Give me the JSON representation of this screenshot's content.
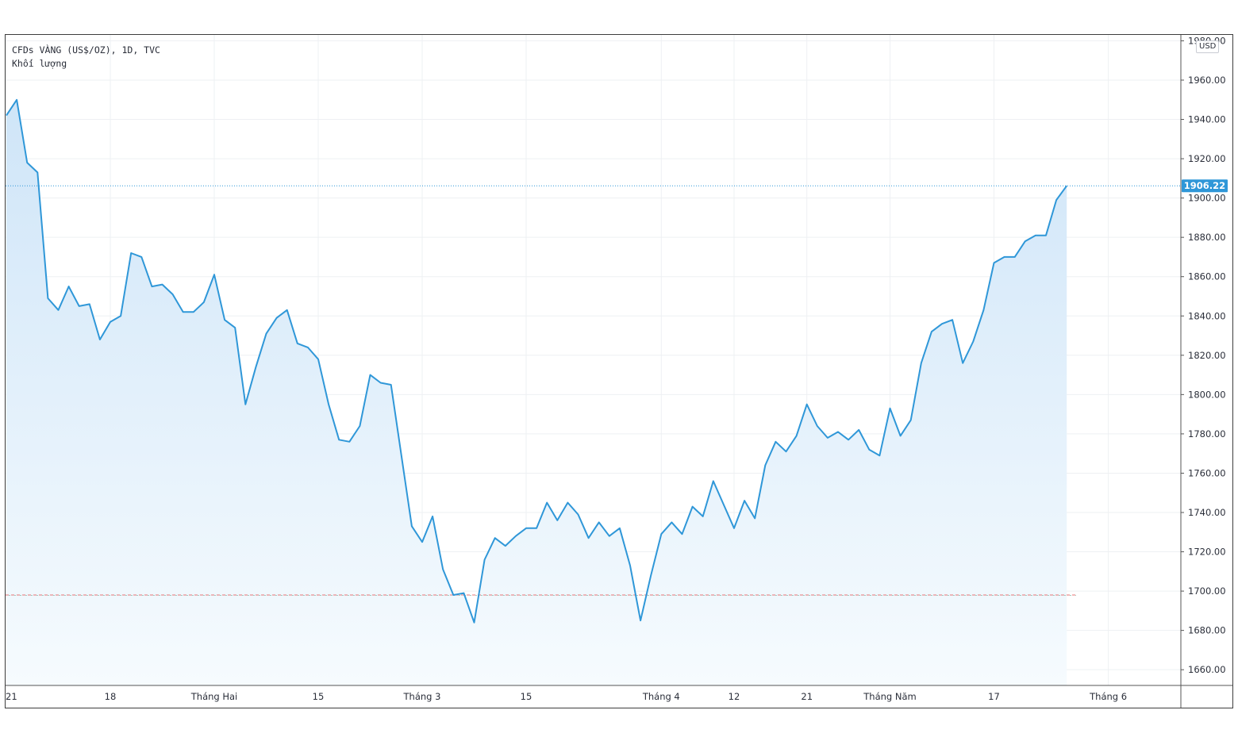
{
  "legend": {
    "symbol_line": "CFDs VÀNG (US$/OZ), 1D, TVC",
    "volume_label": "Khối lượng"
  },
  "currency": "USD",
  "colors": {
    "line": "#2f97d8",
    "fill_top": "#cfe5f8",
    "fill_bottom": "#f6fbfe",
    "price_tag_bg": "#2f97d8",
    "grid": "#eef0f3",
    "reference_red": "#e57373",
    "reference_green": "#7fb8a8"
  },
  "chart_data": {
    "type": "area",
    "title": "",
    "xlabel": "",
    "ylabel": "",
    "ylim": [
      1652,
      1983
    ],
    "y_ticks": [
      1660,
      1680,
      1700,
      1720,
      1740,
      1760,
      1780,
      1800,
      1820,
      1840,
      1860,
      1880,
      1900,
      1920,
      1940,
      1960,
      1980
    ],
    "y_tick_labels": [
      "1660.00",
      "1680.00",
      "1700.00",
      "1720.00",
      "1740.00",
      "1760.00",
      "1780.00",
      "1800.00",
      "1820.00",
      "1840.00",
      "1860.00",
      "1880.00",
      "1900.00",
      "1920.00",
      "1940.00",
      "1960.00",
      "1980.00"
    ],
    "x_ticks": [
      {
        "label": "21",
        "index": 0
      },
      {
        "label": "18",
        "index": 10
      },
      {
        "label": "Tháng Hai",
        "index": 20
      },
      {
        "label": "15",
        "index": 30
      },
      {
        "label": "Tháng 3",
        "index": 40
      },
      {
        "label": "15",
        "index": 50
      },
      {
        "label": "Tháng 4",
        "index": 63
      },
      {
        "label": "12",
        "index": 70
      },
      {
        "label": "21",
        "index": 77
      },
      {
        "label": "Tháng Năm",
        "index": 85
      },
      {
        "label": "17",
        "index": 95
      },
      {
        "label": "Tháng 6",
        "index": 106
      }
    ],
    "grid": true,
    "last_price": "1906.22",
    "reference_level": 1698,
    "series": [
      {
        "values": [
          1942,
          1950,
          1918,
          1913,
          1849,
          1843,
          1855,
          1845,
          1846,
          1828,
          1837,
          1840,
          1872,
          1870,
          1855,
          1856,
          1851,
          1842,
          1842,
          1847,
          1861,
          1838,
          1834,
          1795,
          1814,
          1831,
          1839,
          1843,
          1826,
          1824,
          1818,
          1795,
          1777,
          1776,
          1784,
          1810,
          1806,
          1805,
          1769,
          1733,
          1725,
          1738,
          1711,
          1698,
          1699,
          1684,
          1716,
          1727,
          1723,
          1728,
          1732,
          1732,
          1745,
          1736,
          1745,
          1739,
          1727,
          1735,
          1728,
          1732,
          1713,
          1685,
          1708,
          1729,
          1735,
          1729,
          1743,
          1738,
          1756,
          1744,
          1732,
          1746,
          1737,
          1764,
          1776,
          1771,
          1779,
          1795,
          1784,
          1778,
          1781,
          1777,
          1782,
          1772,
          1769,
          1793,
          1779,
          1787,
          1816,
          1832,
          1836,
          1838,
          1816,
          1827,
          1843,
          1867,
          1870,
          1870,
          1878,
          1881,
          1881,
          1899,
          1906.22
        ]
      }
    ]
  }
}
